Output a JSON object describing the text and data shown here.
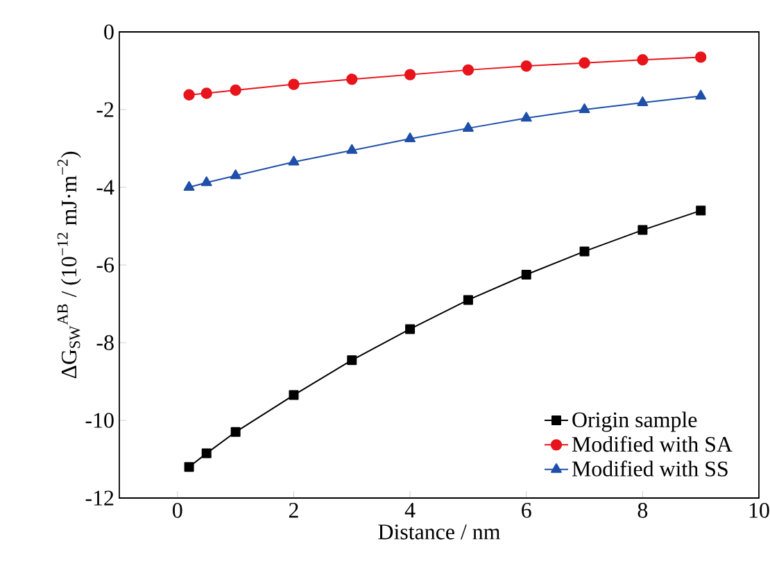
{
  "chart_data": {
    "type": "line",
    "xlabel": "Distance / nm",
    "ylabel": "ΔG$_{SW}$$^{AB}$ / (10$^{−12}$ mJ·m$^{−2}$)",
    "x": [
      0.2,
      0.5,
      1,
      2,
      3,
      4,
      5,
      6,
      7,
      8,
      9
    ],
    "series": [
      {
        "name": "Origin sample",
        "color": "#000000",
        "marker": "square",
        "values": [
          -11.2,
          -10.85,
          -10.3,
          -9.35,
          -8.45,
          -7.65,
          -6.9,
          -6.25,
          -5.65,
          -5.1,
          -4.6
        ]
      },
      {
        "name": "Modified with SA",
        "color": "#e8141b",
        "marker": "circle",
        "values": [
          -1.62,
          -1.58,
          -1.5,
          -1.35,
          -1.22,
          -1.1,
          -0.98,
          -0.88,
          -0.8,
          -0.72,
          -0.65
        ]
      },
      {
        "name": "Modified with SS",
        "color": "#1f4fa8",
        "marker": "triangle",
        "values": [
          -4.0,
          -3.88,
          -3.7,
          -3.35,
          -3.05,
          -2.75,
          -2.48,
          -2.22,
          -2.0,
          -1.82,
          -1.65
        ]
      }
    ],
    "xlim": [
      -1,
      10
    ],
    "ylim": [
      -12,
      0
    ],
    "xticks": [
      0,
      2,
      4,
      6,
      8,
      10
    ],
    "yticks": [
      -12,
      -10,
      -8,
      -6,
      -4,
      -2,
      0
    ],
    "legend": "bottom right",
    "grid": false,
    "line_style": "solid"
  }
}
